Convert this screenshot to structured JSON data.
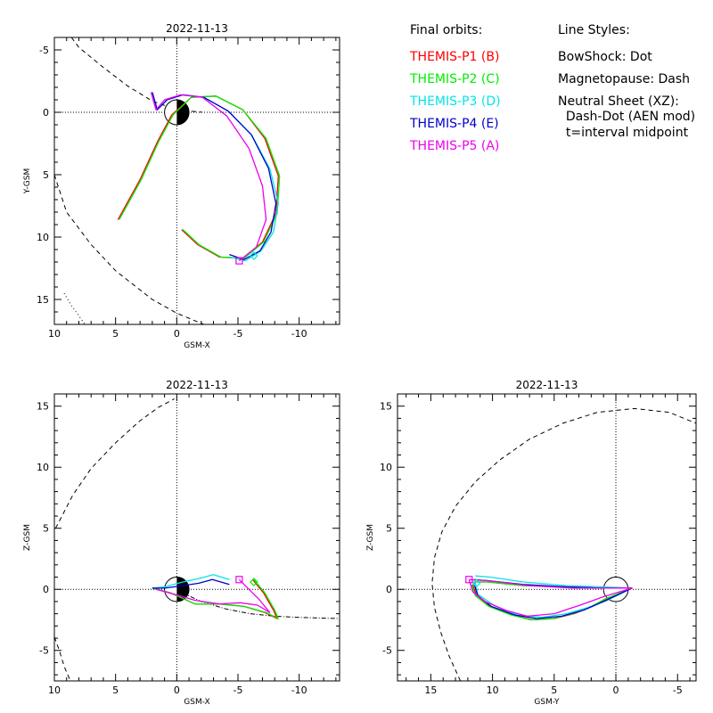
{
  "colors": {
    "THEMIS-P1": "#ff0000",
    "THEMIS-P2": "#00ee00",
    "THEMIS-P3": "#00e5e5",
    "THEMIS-P4": "#0000cc",
    "THEMIS-P5": "#ee00ee",
    "axes": "#000000"
  },
  "legend": {
    "left_title": "Final orbits:",
    "probes": [
      {
        "label": "THEMIS-P1 (B)",
        "key": "THEMIS-P1"
      },
      {
        "label": "THEMIS-P2 (C)",
        "key": "THEMIS-P2"
      },
      {
        "label": "THEMIS-P3 (D)",
        "key": "THEMIS-P3"
      },
      {
        "label": "THEMIS-P4 (E)",
        "key": "THEMIS-P4"
      },
      {
        "label": "THEMIS-P5 (A)",
        "key": "THEMIS-P5"
      }
    ],
    "right_title": "Line Styles:",
    "styles": [
      "BowShock: Dot",
      "Magnetopause: Dash",
      "Neutral Sheet (XZ):",
      "  Dash-Dot (AEN mod)",
      "  t=interval midpoint"
    ]
  },
  "chart_data": [
    {
      "type": "line",
      "title": "2022-11-13",
      "xlabel": "GSM-X",
      "ylabel": "Y-GSM",
      "xlim": [
        10,
        -13.3
      ],
      "ylim": [
        17,
        -6
      ],
      "xticks": [
        10,
        5,
        0,
        -5,
        -10
      ],
      "yticks": [
        15,
        10,
        5,
        0,
        -5
      ],
      "grid": "dotted zero lines",
      "boundaries": {
        "magnetopause": {
          "x": [
            8.6,
            8,
            6,
            4,
            2,
            0,
            -2.1
          ],
          "y": [
            -6,
            -5.2,
            -3.6,
            -2.1,
            -0.9,
            -0.2,
            0
          ]
        },
        "magnetopause_lower": {
          "x": [
            10,
            9,
            7,
            5,
            2,
            0,
            -2.2
          ],
          "y": [
            5,
            8,
            10.6,
            12.7,
            15,
            16.1,
            17
          ]
        },
        "bowshock": {
          "x": [
            9.2,
            8.6,
            8,
            7.5
          ],
          "y": [
            14.5,
            15.5,
            16.3,
            17
          ]
        }
      },
      "series": [
        {
          "name": "THEMIS-P1",
          "x": [
            4.8,
            3,
            1.6,
            0.4,
            -1.2,
            -3.2,
            -5.4,
            -7.2,
            -8.3,
            -8.1,
            -7,
            -5.4,
            -3.5,
            -1.7,
            -0.4
          ],
          "y": [
            8.6,
            5.4,
            2.4,
            0.2,
            -1.2,
            -1.3,
            -0.2,
            2.1,
            5.1,
            8.1,
            10.4,
            11.7,
            11.6,
            10.6,
            9.4
          ]
        },
        {
          "name": "THEMIS-P2",
          "x": [
            4.7,
            2.9,
            1.5,
            0.3,
            -1.2,
            -3.2,
            -5.4,
            -7.3,
            -8.4,
            -8.2,
            -7.1,
            -5.5,
            -3.6,
            -1.8,
            -0.5
          ],
          "y": [
            8.6,
            5.4,
            2.4,
            0.2,
            -1.2,
            -1.3,
            -0.2,
            2.1,
            5.1,
            8.1,
            10.4,
            11.7,
            11.6,
            10.6,
            9.4
          ]
        },
        {
          "name": "THEMIS-P3",
          "x": [
            2,
            1.6,
            0.8,
            -0.5,
            -2.2,
            -4.2,
            -6.1,
            -7.6,
            -8.3,
            -7.9,
            -6.9,
            -5.6,
            -4.3
          ],
          "y": [
            -1.6,
            -0.2,
            -1,
            -1.4,
            -1.2,
            -0.1,
            1.8,
            4.5,
            7.3,
            9.6,
            11.1,
            11.9,
            11.6
          ]
        },
        {
          "name": "THEMIS-P4",
          "x": [
            2,
            1.6,
            0.8,
            -0.5,
            -2.2,
            -4.2,
            -6.1,
            -7.5,
            -8.1,
            -7.7,
            -6.8,
            -5.5,
            -4.3
          ],
          "y": [
            -1.6,
            -0.2,
            -1,
            -1.4,
            -1.2,
            -0.1,
            1.8,
            4.5,
            7.3,
            9.6,
            11.1,
            11.8,
            11.4
          ]
        },
        {
          "name": "THEMIS-P5",
          "x": [
            2.1,
            1.7,
            1,
            -0.3,
            -2.1,
            -4.1,
            -5.9,
            -7,
            -7.3,
            -6.5,
            -5.1
          ],
          "y": [
            -1.6,
            -0.2,
            -1,
            -1.4,
            -1.2,
            0.3,
            2.9,
            5.9,
            8.6,
            10.8,
            11.9
          ]
        }
      ],
      "markers": [
        {
          "series": "THEMIS-P5",
          "shape": "square",
          "x": -5.1,
          "y": 11.9
        },
        {
          "series": "THEMIS-P3",
          "shape": "diamond",
          "x": -6.3,
          "y": 11.5
        }
      ]
    },
    {
      "type": "line",
      "title": "2022-11-13",
      "xlabel": "GSM-X",
      "ylabel": "Z-GSM",
      "xlim": [
        10,
        -13.3
      ],
      "ylim": [
        -7.5,
        16
      ],
      "xticks": [
        10,
        5,
        0,
        -5,
        -10
      ],
      "yticks": [
        -5,
        0,
        5,
        10,
        15
      ],
      "grid": "dotted zero lines",
      "boundaries": {
        "magnetopause": {
          "x": [
            9.9,
            8.5,
            7,
            5,
            3,
            1.5,
            0.2
          ],
          "y": [
            5,
            7.7,
            9.9,
            12,
            13.8,
            14.9,
            15.6
          ]
        },
        "magnetopause_lower": {
          "x": [
            10,
            9.6,
            9.2,
            8.7
          ],
          "y": [
            -3.9,
            -5,
            -6.3,
            -7.5
          ]
        },
        "neutral_sheet": {
          "x": [
            0.2,
            -2,
            -4,
            -6,
            -8,
            -10,
            -13.3
          ],
          "y": [
            0,
            -1,
            -1.6,
            -2,
            -2.2,
            -2.3,
            -2.4
          ]
        }
      },
      "series": [
        {
          "name": "THEMIS-P1",
          "x": [
            2,
            0.5,
            -1.5,
            -3.5,
            -5.5,
            -7.2,
            -8.2,
            -7.9,
            -7.1,
            -6.2
          ],
          "y": [
            0.1,
            -0.3,
            -1.2,
            -1.2,
            -1.4,
            -1.9,
            -2.4,
            -1.7,
            -0.3,
            0.8
          ]
        },
        {
          "name": "THEMIS-P2",
          "x": [
            2,
            0.5,
            -1.5,
            -3.5,
            -5.5,
            -7.3,
            -8.3,
            -8,
            -7.2,
            -6.3
          ],
          "y": [
            0.1,
            -0.3,
            -1.2,
            -1.2,
            -1.4,
            -1.9,
            -2.4,
            -1.7,
            -0.3,
            0.8
          ]
        },
        {
          "name": "THEMIS-P3",
          "x": [
            2,
            1,
            -0.5,
            -1.9,
            -3,
            -4.3
          ],
          "y": [
            0.1,
            0.2,
            0.6,
            0.9,
            1.2,
            0.8
          ]
        },
        {
          "name": "THEMIS-P4",
          "x": [
            2,
            1,
            -0.5,
            -1.8,
            -2.9,
            -4.3
          ],
          "y": [
            0.1,
            0.1,
            0.3,
            0.5,
            0.8,
            0.4
          ]
        },
        {
          "name": "THEMIS-P5",
          "x": [
            1.7,
            0.2,
            -1.5,
            -3.5,
            -5.2,
            -6.6,
            -7.6,
            -6.8,
            -5.1
          ],
          "y": [
            0,
            -0.4,
            -0.9,
            -1.2,
            -1.1,
            -1.3,
            -1.9,
            -0.9,
            0.8
          ]
        }
      ],
      "markers": [
        {
          "series": "THEMIS-P5",
          "shape": "square",
          "x": -5.1,
          "y": 0.8
        },
        {
          "series": "THEMIS-P2",
          "shape": "diamond",
          "x": -6.3,
          "y": 0.6
        }
      ]
    },
    {
      "type": "line",
      "title": "2022-11-13",
      "xlabel": "GSM-Y",
      "ylabel": "Z-GSM",
      "xlim": [
        17.7,
        -6.5
      ],
      "ylim": [
        -7.5,
        16
      ],
      "xticks": [
        15,
        10,
        5,
        0,
        -5
      ],
      "yticks": [
        -5,
        0,
        5,
        10,
        15
      ],
      "grid": "dotted zero lines",
      "boundaries": {
        "magnetopause": {
          "x": [
            12.6,
            13.5,
            14.2,
            14.7,
            14.9,
            14.7,
            14.1,
            13,
            11.4,
            9.4,
            7,
            4.3,
            1.5,
            -1.5,
            -4.3,
            -6.5
          ],
          "y": [
            -7.5,
            -5.5,
            -3.5,
            -1.5,
            0.5,
            2.6,
            4.7,
            6.8,
            8.8,
            10.6,
            12.3,
            13.6,
            14.5,
            14.8,
            14.5,
            13.6
          ]
        }
      },
      "series": [
        {
          "name": "THEMIS-P1",
          "x": [
            11.6,
            11.3,
            10.2,
            8.4,
            6.8,
            5,
            3.4,
            1.9,
            0.8,
            -1.3,
            1,
            4,
            7.5,
            10.4,
            11.5
          ],
          "y": [
            0.4,
            -0.5,
            -1.4,
            -2.1,
            -2.5,
            -2.4,
            -2,
            -1.4,
            -0.8,
            0.1,
            0.1,
            0.2,
            0.3,
            0.6,
            0.6
          ]
        },
        {
          "name": "THEMIS-P2",
          "x": [
            11.7,
            11.4,
            10.3,
            8.5,
            6.9,
            5.1,
            3.5,
            2,
            0.9,
            -1.3,
            1,
            4,
            7.5,
            10.4,
            11.6
          ],
          "y": [
            0.4,
            -0.5,
            -1.4,
            -2.1,
            -2.5,
            -2.4,
            -2,
            -1.4,
            -0.8,
            0.1,
            0.1,
            0.2,
            0.3,
            0.6,
            0.6
          ]
        },
        {
          "name": "THEMIS-P3",
          "x": [
            11.4,
            11.2,
            9.9,
            8,
            6,
            4,
            2.3,
            0.7,
            -1.3,
            1,
            4,
            7.5,
            10.2,
            11.4
          ],
          "y": [
            0.6,
            -0.4,
            -1.3,
            -2.1,
            -2.3,
            -2,
            -1.5,
            -0.9,
            0.1,
            0.2,
            0.3,
            0.6,
            1,
            1.1
          ]
        },
        {
          "name": "THEMIS-P4",
          "x": [
            11.5,
            11.2,
            10.1,
            8.2,
            6.4,
            4.4,
            2.6,
            1,
            -1.3,
            1,
            4,
            7.5,
            10.3,
            11.5
          ],
          "y": [
            0.5,
            -0.5,
            -1.4,
            -2.1,
            -2.4,
            -2.2,
            -1.7,
            -1,
            0.1,
            0.1,
            0.2,
            0.4,
            0.7,
            0.8
          ]
        },
        {
          "name": "THEMIS-P5",
          "x": [
            11.9,
            11.6,
            10.6,
            9,
            7.2,
            5,
            2.9,
            1,
            -1.3,
            1,
            3.5,
            7,
            10.2,
            11.9
          ],
          "y": [
            0.8,
            -0.2,
            -1,
            -1.7,
            -2.2,
            -2,
            -1.3,
            -0.6,
            0.1,
            0.1,
            0.1,
            0.3,
            0.7,
            0.8
          ]
        }
      ],
      "markers": [
        {
          "series": "THEMIS-P5",
          "shape": "square",
          "x": 11.9,
          "y": 0.8
        },
        {
          "series": "THEMIS-P3",
          "shape": "diamond",
          "x": 11.3,
          "y": 0.5
        }
      ]
    }
  ]
}
